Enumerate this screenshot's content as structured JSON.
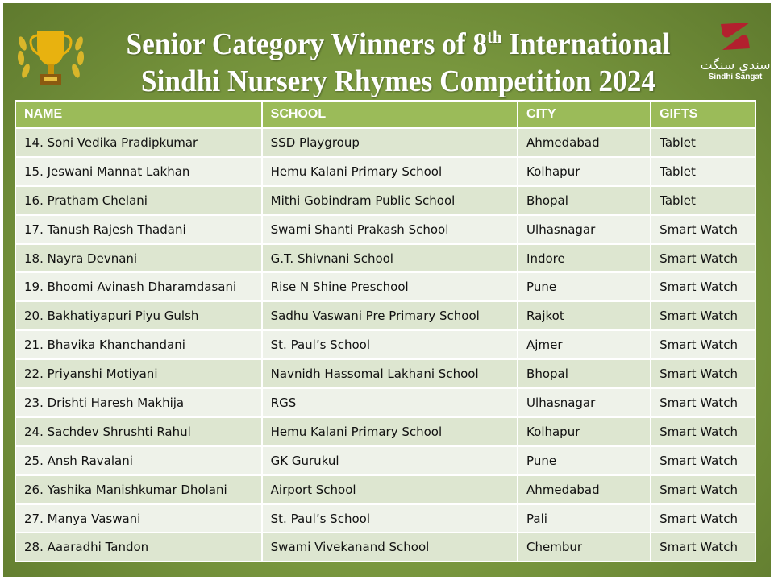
{
  "title": {
    "line1_a": "Senior Category Winners of 8",
    "line1_sup": "th",
    "line1_b": " International",
    "line2": "Sindhi Nursery Rhymes Competition 2024"
  },
  "logo": {
    "urdu": "سندي سنگت",
    "name": "Sindhi Sangat"
  },
  "colors": {
    "header": "#9bbb59",
    "row_odd": "#dde6d0",
    "row_even": "#eef2e9",
    "logo_red": "#b3202e",
    "trophy": "#e8b20f"
  },
  "table": {
    "headers": [
      "NAME",
      "SCHOOL",
      "CITY",
      "GIFTS"
    ],
    "rows": [
      [
        "14. Soni Vedika Pradipkumar",
        "SSD Playgroup",
        "Ahmedabad",
        "Tablet"
      ],
      [
        "15. Jeswani Mannat Lakhan",
        "Hemu Kalani Primary School",
        "Kolhapur",
        "Tablet"
      ],
      [
        "16. Pratham Chelani",
        "Mithi Gobindram Public School",
        "Bhopal",
        "Tablet"
      ],
      [
        "17. Tanush Rajesh Thadani",
        "Swami Shanti Prakash School",
        "Ulhasnagar",
        "Smart Watch"
      ],
      [
        "18. Nayra Devnani",
        "G.T. Shivnani School",
        "Indore",
        "Smart Watch"
      ],
      [
        "19. Bhoomi Avinash Dharamdasani",
        "Rise N Shine Preschool",
        "Pune",
        "Smart Watch"
      ],
      [
        "20. Bakhatiyapuri Piyu Gulsh",
        "Sadhu Vaswani Pre Primary School",
        "Rajkot",
        "Smart Watch"
      ],
      [
        "21. Bhavika Khanchandani",
        "St. Paul’s School",
        "Ajmer",
        "Smart Watch"
      ],
      [
        "22. Priyanshi Motiyani",
        "Navnidh Hassomal Lakhani School",
        "Bhopal",
        "Smart Watch"
      ],
      [
        "23. Drishti Haresh Makhija",
        "RGS",
        "Ulhasnagar",
        "Smart Watch"
      ],
      [
        "24. Sachdev Shrushti Rahul",
        "Hemu Kalani Primary School",
        "Kolhapur",
        "Smart Watch"
      ],
      [
        "25. Ansh Ravalani",
        "GK Gurukul",
        "Pune",
        "Smart Watch"
      ],
      [
        "26. Yashika Manishkumar Dholani",
        "Airport School",
        "Ahmedabad",
        "Smart Watch"
      ],
      [
        "27. Manya Vaswani",
        "St. Paul’s School",
        "Pali",
        "Smart Watch"
      ],
      [
        "28. Aaaradhi Tandon",
        "Swami Vivekanand School",
        "Chembur",
        "Smart Watch"
      ]
    ]
  }
}
